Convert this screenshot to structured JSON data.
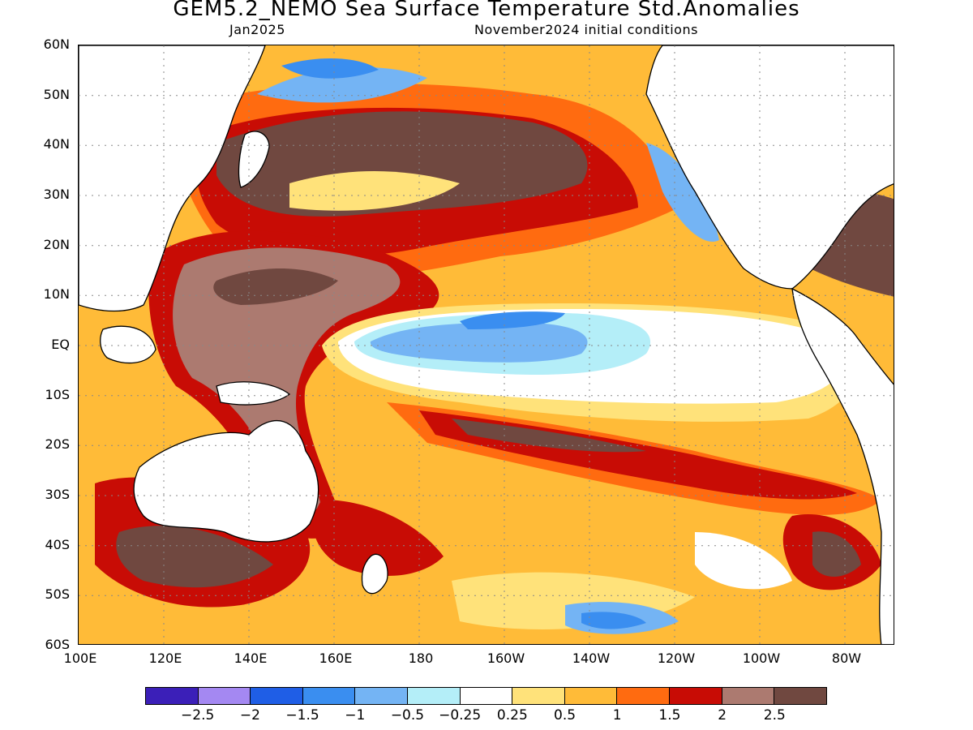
{
  "header": {
    "title": "GEM5.2_NEMO Sea Surface Temperature Std.Anomalies",
    "valid": "Jan2025",
    "init": "November2024 initial conditions"
  },
  "axes": {
    "lat_labels": [
      "60N",
      "50N",
      "40N",
      "30N",
      "20N",
      "10N",
      "EQ",
      "10S",
      "20S",
      "30S",
      "40S",
      "50S",
      "60S"
    ],
    "lon_labels": [
      "100E",
      "120E",
      "140E",
      "160E",
      "180",
      "160W",
      "140W",
      "120W",
      "100W",
      "80W"
    ]
  },
  "colorbar": {
    "colors": [
      "#3b1fb8",
      "#a488f2",
      "#1f5ee6",
      "#3a8ef0",
      "#74b4f4",
      "#b4eef8",
      "#ffffff",
      "#ffe27a",
      "#ffbb38",
      "#ff6b10",
      "#c80c05",
      "#ac7a70",
      "#704840"
    ],
    "labels": [
      "−2.5",
      "−2",
      "−1.5",
      "−1",
      "−0.5",
      "−0.25",
      "0.25",
      "0.5",
      "1",
      "1.5",
      "2",
      "2.5"
    ]
  },
  "map": {
    "extent": "100E-70W, 60S-60N",
    "land_color": "#ffffff",
    "coast_color": "#000000",
    "gridline_style": "dotted"
  }
}
